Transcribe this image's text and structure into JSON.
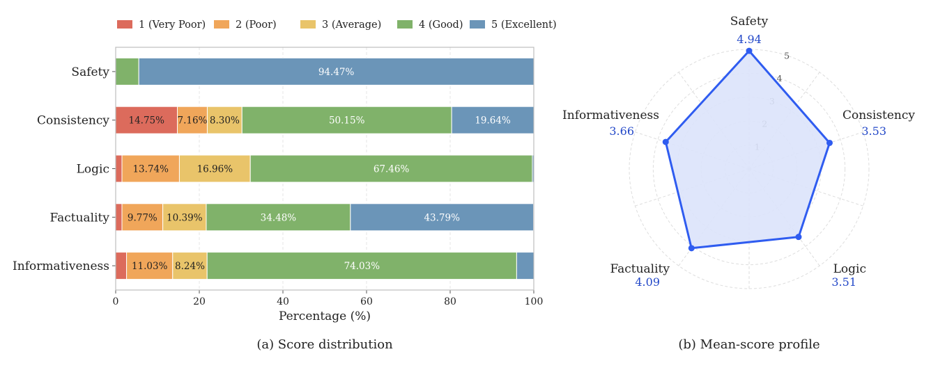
{
  "chart_data": [
    {
      "type": "bar",
      "orientation": "horizontal",
      "stacked": true,
      "caption": "(a) Score distribution",
      "xlabel": "Percentage (%)",
      "ylabel": "",
      "xlim": [
        0,
        100
      ],
      "xticks": [
        "0",
        "20",
        "40",
        "60",
        "80",
        "100"
      ],
      "grid": true,
      "legend_position": "top",
      "categories": [
        "Safety",
        "Consistency",
        "Logic",
        "Factuality",
        "Informativeness"
      ],
      "series": [
        {
          "name": "1 (Very Poor)",
          "color": "#DC6B5C",
          "values": [
            0.0,
            14.75,
            1.5,
            1.5,
            2.6
          ]
        },
        {
          "name": "2 (Poor)",
          "color": "#F0A65A",
          "values": [
            0.0,
            7.16,
            13.74,
            9.77,
            11.03
          ]
        },
        {
          "name": "3 (Average)",
          "color": "#E9C46A",
          "values": [
            0.0,
            8.3,
            16.96,
            10.39,
            8.24
          ]
        },
        {
          "name": "4 (Good)",
          "color": "#80B26A",
          "values": [
            5.53,
            50.15,
            67.46,
            34.48,
            74.03
          ]
        },
        {
          "name": "5 (Excellent)",
          "color": "#6B95B8",
          "values": [
            94.47,
            19.64,
            0.34,
            43.79,
            4.1
          ]
        }
      ],
      "data_labels": [
        {
          "category": "Safety",
          "series": "5 (Excellent)",
          "text": "94.47%"
        },
        {
          "category": "Consistency",
          "series": "1 (Very Poor)",
          "text": "14.75%"
        },
        {
          "category": "Consistency",
          "series": "2 (Poor)",
          "text": "7.16%"
        },
        {
          "category": "Consistency",
          "series": "3 (Average)",
          "text": "8.30%"
        },
        {
          "category": "Consistency",
          "series": "4 (Good)",
          "text": "50.15%"
        },
        {
          "category": "Consistency",
          "series": "5 (Excellent)",
          "text": "19.64%"
        },
        {
          "category": "Logic",
          "series": "2 (Poor)",
          "text": "13.74%"
        },
        {
          "category": "Logic",
          "series": "3 (Average)",
          "text": "16.96%"
        },
        {
          "category": "Logic",
          "series": "4 (Good)",
          "text": "67.46%"
        },
        {
          "category": "Factuality",
          "series": "2 (Poor)",
          "text": "9.77%"
        },
        {
          "category": "Factuality",
          "series": "3 (Average)",
          "text": "10.39%"
        },
        {
          "category": "Factuality",
          "series": "4 (Good)",
          "text": "34.48%"
        },
        {
          "category": "Factuality",
          "series": "5 (Excellent)",
          "text": "43.79%"
        },
        {
          "category": "Informativeness",
          "series": "2 (Poor)",
          "text": "11.03%"
        },
        {
          "category": "Informativeness",
          "series": "3 (Average)",
          "text": "8.24%"
        },
        {
          "category": "Informativeness",
          "series": "4 (Good)",
          "text": "74.03%"
        }
      ]
    },
    {
      "type": "radar",
      "caption": "(b) Mean-score profile",
      "rlim": [
        0,
        5
      ],
      "rticks": [
        "1",
        "2",
        "3",
        "4",
        "5"
      ],
      "grid": true,
      "line_color": "#2F5CF0",
      "fill_color": "#DCE3FB",
      "value_color": "#2348C8",
      "axes": [
        "Safety",
        "Consistency",
        "Logic",
        "Factuality",
        "Informativeness"
      ],
      "values": [
        4.94,
        3.53,
        3.51,
        4.09,
        3.66
      ],
      "value_labels": [
        "4.94",
        "3.53",
        "3.51",
        "4.09",
        "3.66"
      ]
    }
  ]
}
